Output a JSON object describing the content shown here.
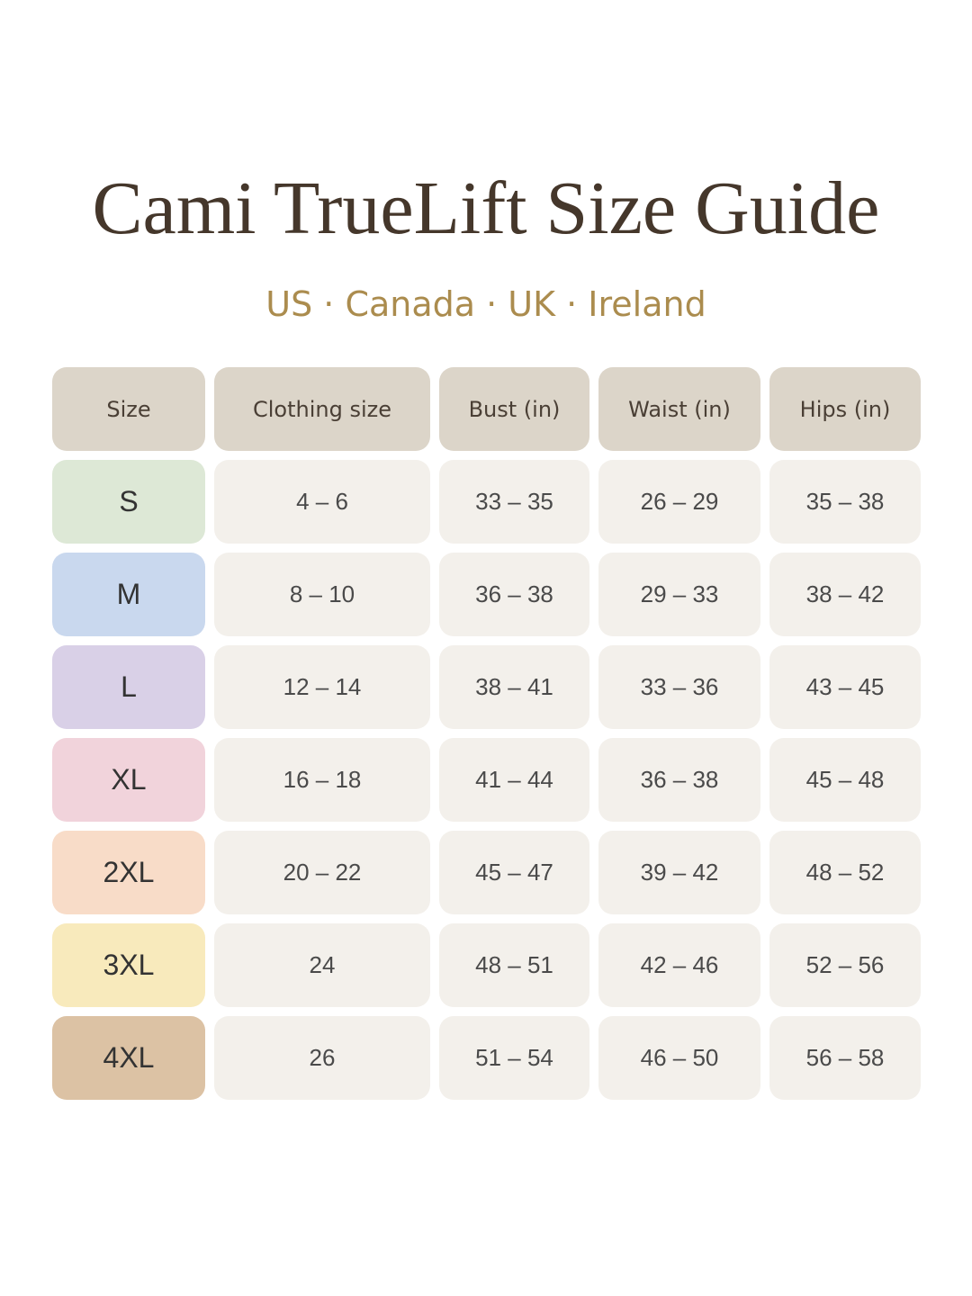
{
  "title": "Cami TrueLift Size Guide",
  "subtitle": "US · Canada · UK · Ireland",
  "headers": [
    "Size",
    "Clothing size",
    "Bust (in)",
    "Waist (in)",
    "Hips (in)"
  ],
  "rows": [
    {
      "size": "S",
      "clothing": "4 – 6",
      "bust": "33 – 35",
      "waist": "26 – 29",
      "hips": "35 – 38",
      "color": "#dde8d6"
    },
    {
      "size": "M",
      "clothing": "8 – 10",
      "bust": "36 – 38",
      "waist": "29 – 33",
      "hips": "38 – 42",
      "color": "#c9d8ee"
    },
    {
      "size": "L",
      "clothing": "12 – 14",
      "bust": "38 – 41",
      "waist": "33 – 36",
      "hips": "43 – 45",
      "color": "#d9d0e7"
    },
    {
      "size": "XL",
      "clothing": "16 – 18",
      "bust": "41 – 44",
      "waist": "36 – 38",
      "hips": "45 – 48",
      "color": "#f1d3db"
    },
    {
      "size": "2XL",
      "clothing": "20 – 22",
      "bust": "45 – 47",
      "waist": "39 – 42",
      "hips": "48 – 52",
      "color": "#f8dcc8"
    },
    {
      "size": "3XL",
      "clothing": "24",
      "bust": "48 – 51",
      "waist": "42 – 46",
      "hips": "52 – 56",
      "color": "#f8eabc"
    },
    {
      "size": "4XL",
      "clothing": "26",
      "bust": "51 – 54",
      "waist": "46 – 50",
      "hips": "56 – 58",
      "color": "#dcc2a4"
    }
  ]
}
